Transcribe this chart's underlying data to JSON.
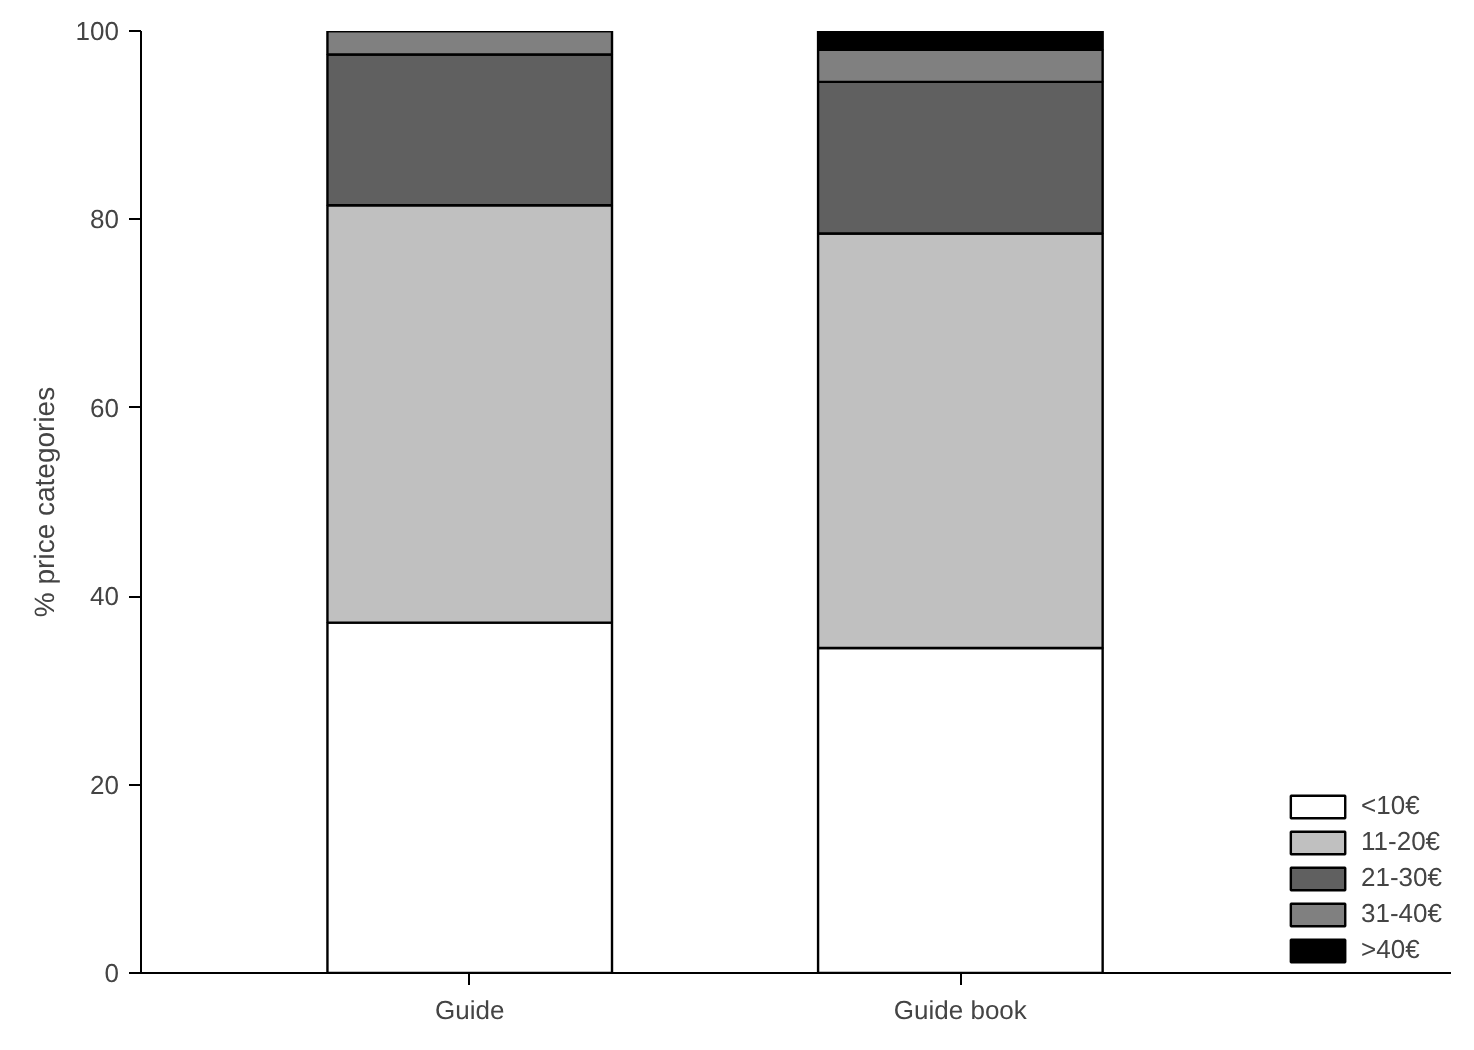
{
  "chart_data": {
    "type": "bar",
    "stacked": true,
    "ylabel": "% price categories",
    "categories": [
      "Guide",
      "Guide book"
    ],
    "series": [
      {
        "name": "<10€",
        "color": "#ffffff",
        "values": [
          37.2,
          34.5
        ]
      },
      {
        "name": "11-20€",
        "color": "#c0c0c0",
        "values": [
          44.3,
          44.0
        ]
      },
      {
        "name": "21-30€",
        "color": "#606060",
        "values": [
          16.0,
          16.1
        ]
      },
      {
        "name": "31-40€",
        "color": "#808080",
        "values": [
          2.5,
          3.4
        ]
      },
      {
        "name": ">40€",
        "color": "#000000",
        "values": [
          0,
          2.0
        ]
      }
    ],
    "ylim": [
      0,
      100
    ],
    "yticks": [
      0,
      20,
      40,
      60,
      80,
      100
    ],
    "grid": false,
    "legend": "bottom right"
  }
}
